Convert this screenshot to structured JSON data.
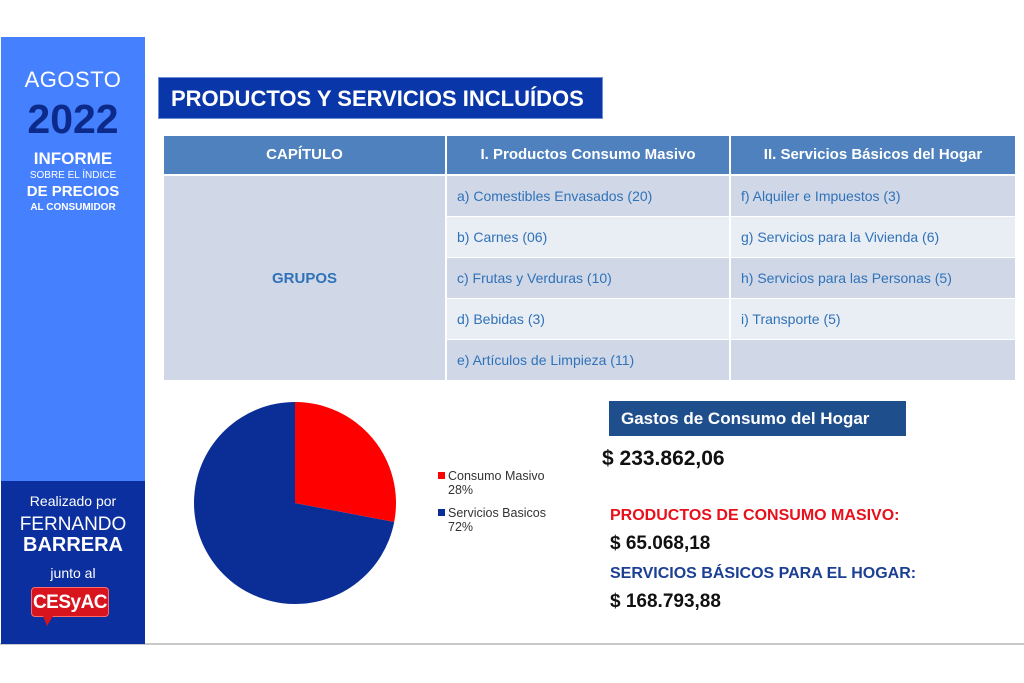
{
  "sidebar": {
    "month": "AGOSTO",
    "year": "2022",
    "informe": "INFORME",
    "sobre": "SOBRE EL ÍNDICE",
    "precios": "DE PRECIOS",
    "consumidor": "AL CONSUMIDOR",
    "realizado": "Realizado por",
    "author_first": "FERNANDO",
    "author_last": "BARRERA",
    "junto": "junto al",
    "logo": "CESyAC",
    "colors": {
      "top": "#4580ff",
      "bottom": "#0b2f9f",
      "logo": "#d8141e"
    }
  },
  "title": "PRODUCTOS Y SERVICIOS INCLUÍDOS",
  "table": {
    "headers": [
      "CAPÍTULO",
      "I. Productos Consumo Masivo",
      "II. Servicios Básicos del Hogar"
    ],
    "row_label": "GRUPOS",
    "rows": [
      [
        "a) Comestibles Envasados (20)",
        "f) Alquiler e Impuestos (3)"
      ],
      [
        "b) Carnes (06)",
        "g) Servicios para la Vivienda (6)"
      ],
      [
        "c) Frutas y Verduras (10)",
        "h) Servicios para las Personas (5)"
      ],
      [
        "d) Bebidas (3)",
        "i) Transporte (5)"
      ],
      [
        "e) Artículos de Limpieza (11)",
        ""
      ]
    ]
  },
  "summary": {
    "box_title": "Gastos de Consumo del Hogar",
    "total": "$ 233.862,06",
    "consumo_label": "PRODUCTOS DE CONSUMO MASIVO:",
    "consumo_value": "$ 65.068,18",
    "servicios_label": "SERVICIOS BÁSICOS PARA EL HOGAR:",
    "servicios_value": "$ 168.793,88"
  },
  "chart_data": {
    "type": "pie",
    "title": "",
    "categories": [
      "Consumo Masivo",
      "Servicios Basicos"
    ],
    "values": [
      28,
      72
    ],
    "labels": [
      "28%",
      "72%"
    ],
    "colors": [
      "#ff0000",
      "#0b2e96"
    ],
    "legend_position": "right",
    "legend": [
      {
        "name": "Consumo Masivo",
        "pct": "28%",
        "color": "#ff0000"
      },
      {
        "name": "Servicios Basicos",
        "pct": "72%",
        "color": "#0b2e96"
      }
    ]
  }
}
